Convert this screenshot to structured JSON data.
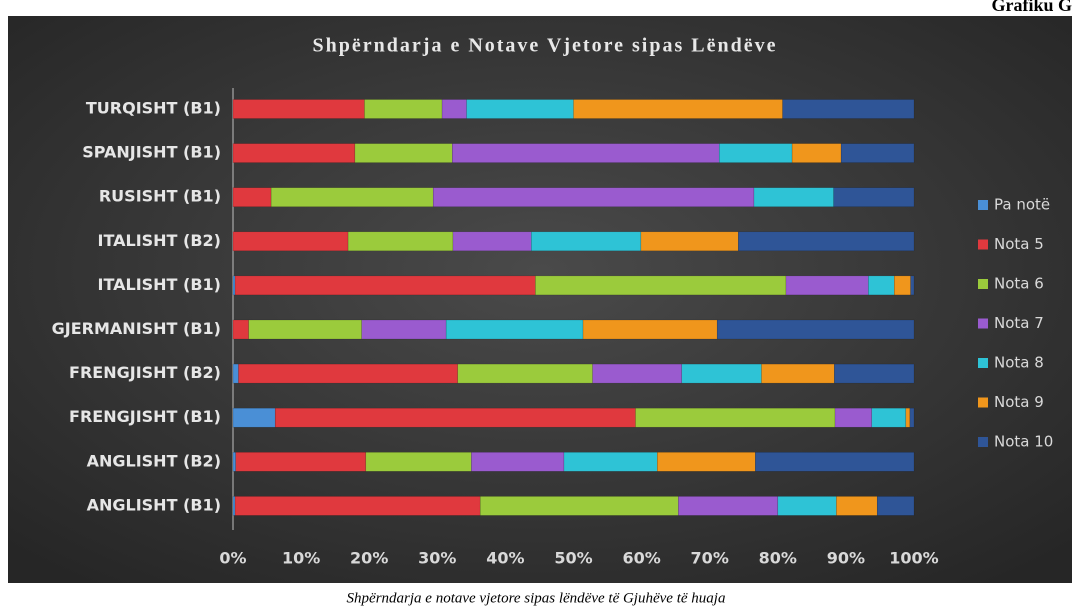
{
  "header": "Grafiku G",
  "chart_data": {
    "type": "stacked_barh",
    "title": "Shpërndarja e Notave Vjetore sipas Lëndëve",
    "categories": [
      "TURQISHT (B1)",
      "SPANJISHT (B1)",
      "RUSISHT (B1)",
      "ITALISHT (B2)",
      "ITALISHT (B1)",
      "GJERMANISHT (B1)",
      "FRENGJISHT (B2)",
      "FRENGJISHT (B1)",
      "ANGLISHT (B2)",
      "ANGLISHT (B1)"
    ],
    "series": [
      {
        "name": "Pa notë",
        "color": "#4a8fd6",
        "values": [
          0,
          0,
          0,
          0,
          0.3,
          0,
          0.8,
          6.2,
          0.4,
          0.3
        ]
      },
      {
        "name": "Nota 5",
        "color": "#e0393e",
        "values": [
          19.3,
          17.9,
          5.6,
          16.9,
          44.1,
          2.3,
          32.2,
          52.9,
          19.1,
          36
        ]
      },
      {
        "name": "Nota 6",
        "color": "#9bcb3c",
        "values": [
          11.4,
          14.3,
          23.8,
          15.4,
          36.8,
          16.6,
          19.8,
          29.3,
          15.5,
          29.1
        ]
      },
      {
        "name": "Nota 7",
        "color": "#9a5bcf",
        "values": [
          3.6,
          39.2,
          47.1,
          11.5,
          12.1,
          12.4,
          13.1,
          5.4,
          13.6,
          14.6
        ]
      },
      {
        "name": "Nota 8",
        "color": "#2ec3d6",
        "values": [
          15.7,
          10.7,
          11.7,
          16.1,
          3.8,
          20.1,
          11.7,
          5,
          13.7,
          8.6
        ]
      },
      {
        "name": "Nota 9",
        "color": "#f0961c",
        "values": [
          30.7,
          7.2,
          0,
          14.3,
          2.4,
          19.7,
          10.7,
          0.6,
          14.4,
          6
        ]
      },
      {
        "name": "Nota 10",
        "color": "#2f5597",
        "values": [
          19.3,
          10.7,
          11.8,
          25.8,
          0.5,
          28.9,
          11.7,
          0.6,
          23.3,
          5.4
        ]
      }
    ],
    "xlim": [
      0,
      100
    ],
    "xticks": [
      {
        "value": 0,
        "label": "0%"
      },
      {
        "value": 10,
        "label": "10%"
      },
      {
        "value": 20,
        "label": "20%"
      },
      {
        "value": 30,
        "label": "30%"
      },
      {
        "value": 40,
        "label": "40%"
      },
      {
        "value": 50,
        "label": "50%"
      },
      {
        "value": 60,
        "label": "60%"
      },
      {
        "value": 70,
        "label": "70%"
      },
      {
        "value": 80,
        "label": "80%"
      },
      {
        "value": 90,
        "label": "90%"
      },
      {
        "value": 100,
        "label": "100%"
      }
    ],
    "legend": "right"
  },
  "caption": "Shpërndarja e notave vjetore sipas lëndëve të Gjuhëve të huaja"
}
